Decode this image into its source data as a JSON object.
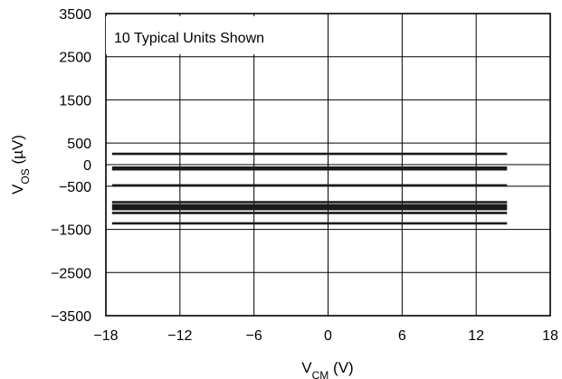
{
  "chart_data": {
    "type": "line",
    "annotation": "10 Typical Units Shown",
    "xlabel": {
      "main": "V",
      "sub": "CM",
      "suffix": " (V)"
    },
    "ylabel": {
      "main": "V",
      "sub": "OS",
      "suffix": " (µV)"
    },
    "xlim": [
      -18,
      18
    ],
    "ylim": [
      -3500,
      3500
    ],
    "xticks": [
      -18,
      -12,
      -6,
      0,
      6,
      12,
      18
    ],
    "xtick_labels": [
      "−18",
      "−12",
      "−6",
      "0",
      "6",
      "12",
      "18"
    ],
    "yticks": [
      3500,
      2500,
      1500,
      500,
      0,
      -500,
      -1500,
      -2500,
      -3500
    ],
    "ytick_labels": [
      "3500",
      "2500",
      "1500",
      "500",
      "0",
      "−500",
      "−1500",
      "−2500",
      "−3500"
    ],
    "grid": true,
    "x": [
      -17.5,
      14.5
    ],
    "series": [
      {
        "values": [
          250,
          250
        ]
      },
      {
        "values": [
          -70,
          -70
        ]
      },
      {
        "values": [
          -110,
          -110
        ]
      },
      {
        "values": [
          -480,
          -480
        ]
      },
      {
        "values": [
          -870,
          -870
        ]
      },
      {
        "values": [
          -940,
          -940
        ]
      },
      {
        "values": [
          -990,
          -990
        ]
      },
      {
        "values": [
          -1030,
          -1030
        ]
      },
      {
        "values": [
          -1120,
          -1120
        ]
      },
      {
        "values": [
          -1360,
          -1360
        ]
      }
    ],
    "zero_reference": {
      "style": "dashed",
      "x": [
        -18,
        18
      ],
      "y": 0
    },
    "colors": {
      "line": "#1a1a1a",
      "grid": "#000000",
      "background": "#ffffff"
    }
  }
}
